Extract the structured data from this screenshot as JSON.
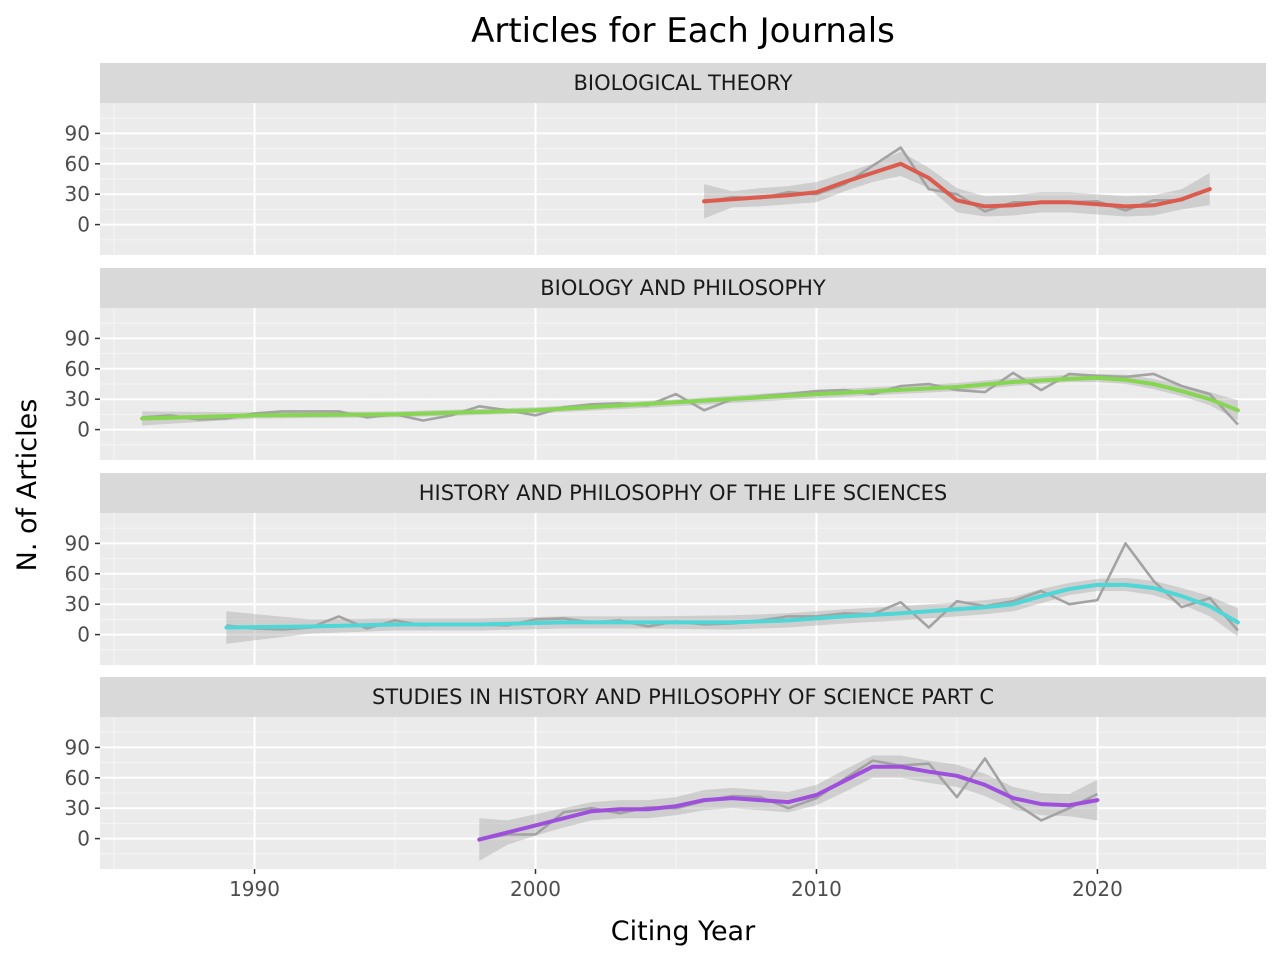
{
  "chart_data": {
    "type": "line",
    "title": "Articles for Each Journals",
    "xlabel": "Citing Year",
    "ylabel": "N. of Articles",
    "xlim": [
      1984.5,
      2026
    ],
    "ylim": [
      -30,
      120
    ],
    "x_ticks": [
      1990,
      2000,
      2010,
      2020
    ],
    "y_ticks": [
      0,
      30,
      60,
      90
    ],
    "grid": true,
    "facets": [
      {
        "name": "BIOLOGICAL THEORY",
        "color": "#db5b4f",
        "raw_x": [
          2006,
          2007,
          2008,
          2009,
          2010,
          2011,
          2012,
          2013,
          2014,
          2015,
          2016,
          2017,
          2018,
          2019,
          2020,
          2021,
          2022,
          2023,
          2024
        ],
        "raw_y": [
          22,
          27,
          26,
          32,
          30,
          40,
          58,
          76,
          35,
          30,
          13,
          22,
          22,
          22,
          23,
          14,
          24,
          24,
          35
        ],
        "smooth_x": [
          2006,
          2007,
          2008,
          2009,
          2010,
          2011,
          2012,
          2013,
          2014,
          2015,
          2016,
          2017,
          2018,
          2019,
          2020,
          2021,
          2022,
          2023,
          2024
        ],
        "smooth_y": [
          23,
          25,
          27,
          29,
          32,
          42,
          51,
          60,
          46,
          24,
          18,
          19,
          22,
          22,
          20,
          18,
          19,
          25,
          35
        ],
        "band_low": [
          6,
          17,
          18,
          20,
          22,
          33,
          42,
          48,
          36,
          12,
          8,
          9,
          12,
          12,
          10,
          8,
          9,
          15,
          19
        ],
        "band_high": [
          40,
          33,
          36,
          38,
          42,
          51,
          60,
          72,
          56,
          36,
          28,
          29,
          32,
          32,
          30,
          28,
          29,
          35,
          51
        ]
      },
      {
        "name": "BIOLOGY AND PHILOSOPHY",
        "color": "#86d651",
        "raw_x": [
          1986,
          1987,
          1988,
          1989,
          1990,
          1991,
          1992,
          1993,
          1994,
          1995,
          1996,
          1997,
          1998,
          1999,
          2000,
          2001,
          2002,
          2003,
          2004,
          2005,
          2006,
          2007,
          2008,
          2009,
          2010,
          2011,
          2012,
          2013,
          2014,
          2015,
          2016,
          2017,
          2018,
          2019,
          2020,
          2021,
          2022,
          2023,
          2024,
          2025
        ],
        "raw_y": [
          12,
          14,
          10,
          11,
          16,
          18,
          18,
          18,
          12,
          15,
          9,
          14,
          23,
          19,
          14,
          22,
          25,
          26,
          24,
          35,
          19,
          30,
          33,
          35,
          38,
          39,
          35,
          43,
          45,
          39,
          37,
          56,
          39,
          55,
          53,
          52,
          55,
          43,
          35,
          5
        ],
        "smooth_x": [
          1986,
          1990,
          1995,
          2000,
          2005,
          2010,
          2015,
          2017,
          2019,
          2020,
          2021,
          2022,
          2023,
          2024,
          2025
        ],
        "smooth_y": [
          11,
          14,
          15,
          19,
          27,
          35,
          42,
          47,
          50,
          51,
          49,
          45,
          38,
          30,
          19
        ],
        "band_low": [
          4,
          11,
          12,
          16,
          23,
          31,
          38,
          43,
          47,
          47,
          45,
          40,
          33,
          24,
          9
        ],
        "band_high": [
          18,
          17,
          18,
          22,
          30,
          39,
          46,
          51,
          54,
          55,
          54,
          50,
          44,
          37,
          29
        ]
      },
      {
        "name": "HISTORY AND PHILOSOPHY OF THE LIFE SCIENCES",
        "color": "#4fd6d6",
        "raw_x": [
          1989,
          1990,
          1991,
          1992,
          1993,
          1994,
          1995,
          1996,
          1997,
          1998,
          1999,
          2000,
          2001,
          2002,
          2003,
          2004,
          2005,
          2006,
          2007,
          2008,
          2009,
          2010,
          2011,
          2012,
          2013,
          2014,
          2015,
          2016,
          2017,
          2018,
          2019,
          2020,
          2021,
          2022,
          2023,
          2024,
          2025
        ],
        "raw_y": [
          9,
          6,
          5,
          7,
          18,
          6,
          14,
          9,
          10,
          10,
          9,
          15,
          16,
          12,
          14,
          8,
          13,
          10,
          11,
          14,
          18,
          18,
          21,
          20,
          32,
          7,
          33,
          28,
          33,
          43,
          30,
          34,
          90,
          53,
          27,
          36,
          4
        ],
        "smooth_x": [
          1989,
          1992,
          1995,
          1998,
          2001,
          2004,
          2007,
          2009,
          2011,
          2013,
          2015,
          2016,
          2017,
          2018,
          2019,
          2020,
          2021,
          2022,
          2023,
          2024,
          2025
        ],
        "smooth_y": [
          7,
          8,
          10,
          10,
          12,
          12,
          12,
          14,
          18,
          21,
          25,
          27,
          30,
          38,
          45,
          49,
          49,
          46,
          38,
          28,
          12
        ],
        "band_low": [
          -9,
          1,
          4,
          4,
          6,
          6,
          5,
          7,
          11,
          14,
          18,
          20,
          23,
          31,
          39,
          43,
          43,
          39,
          30,
          18,
          -2
        ],
        "band_high": [
          23,
          15,
          16,
          16,
          18,
          18,
          19,
          21,
          25,
          28,
          32,
          34,
          37,
          45,
          51,
          55,
          56,
          53,
          46,
          38,
          26
        ]
      },
      {
        "name": "STUDIES IN HISTORY AND PHILOSOPHY OF SCIENCE PART C",
        "color": "#9e50dc",
        "raw_x": [
          1998,
          1999,
          2000,
          2001,
          2002,
          2003,
          2004,
          2005,
          2006,
          2007,
          2008,
          2009,
          2010,
          2011,
          2012,
          2013,
          2014,
          2015,
          2016,
          2017,
          2018,
          2019,
          2020
        ],
        "raw_y": [
          -1,
          4,
          4,
          26,
          30,
          25,
          31,
          30,
          37,
          42,
          41,
          30,
          40,
          59,
          77,
          72,
          74,
          41,
          79,
          36,
          18,
          30,
          44
        ],
        "smooth_x": [
          1998,
          1999,
          2000,
          2001,
          2002,
          2003,
          2004,
          2005,
          2006,
          2007,
          2008,
          2009,
          2010,
          2011,
          2012,
          2013,
          2014,
          2015,
          2016,
          2017,
          2018,
          2019,
          2020
        ],
        "smooth_y": [
          -1,
          6,
          13,
          20,
          27,
          29,
          29,
          32,
          38,
          40,
          38,
          36,
          43,
          57,
          71,
          71,
          66,
          62,
          53,
          40,
          34,
          33,
          38
        ],
        "band_low": [
          -22,
          -6,
          3,
          11,
          18,
          20,
          20,
          23,
          28,
          30,
          28,
          26,
          33,
          46,
          60,
          60,
          55,
          51,
          42,
          29,
          23,
          22,
          18
        ],
        "band_high": [
          20,
          18,
          24,
          30,
          36,
          38,
          38,
          41,
          48,
          50,
          48,
          46,
          53,
          68,
          82,
          82,
          77,
          73,
          64,
          51,
          45,
          44,
          58
        ]
      }
    ]
  }
}
